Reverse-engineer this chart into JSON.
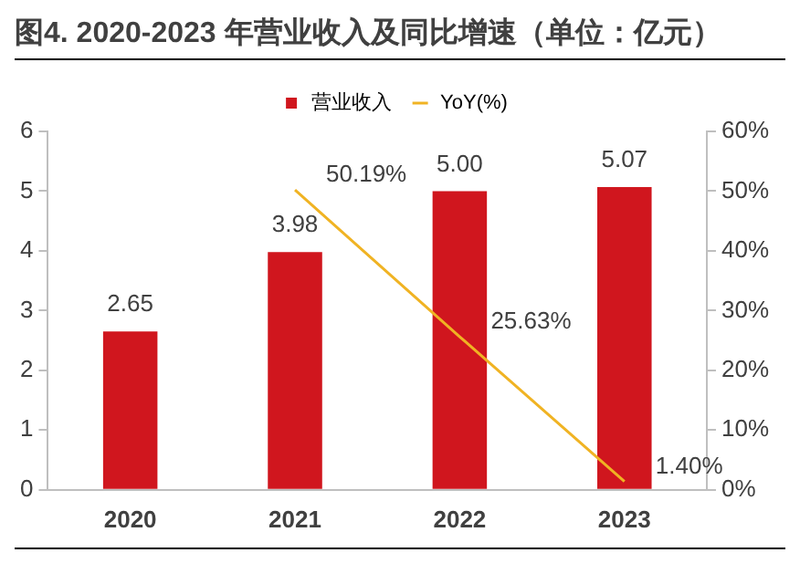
{
  "chart_data": {
    "type": "bar",
    "title": "图4. 2020-2023 年营业收入及同比增速（单位：亿元）",
    "categories": [
      "2020",
      "2021",
      "2022",
      "2023"
    ],
    "series": [
      {
        "name": "营业收入",
        "color": "#d0161e",
        "values": [
          2.65,
          3.98,
          5.0,
          5.07
        ],
        "value_labels": [
          "2.65",
          "3.98",
          "5.00",
          "5.07"
        ]
      },
      {
        "name": "YoY(%)",
        "type": "line",
        "axis": "y2",
        "color": "#f0b323",
        "values": [
          null,
          50.19,
          25.63,
          1.4
        ],
        "value_labels": [
          null,
          "50.19%",
          "25.63%",
          "1.40%"
        ]
      }
    ],
    "ylim": [
      0,
      6
    ],
    "yticks": [
      0,
      1,
      2,
      3,
      4,
      5,
      6
    ],
    "y2lim": [
      0,
      60
    ],
    "y2ticks": [
      {
        "value": 0,
        "label": "0%"
      },
      {
        "value": 10,
        "label": "10%"
      },
      {
        "value": 20,
        "label": "20%"
      },
      {
        "value": 30,
        "label": "30%"
      },
      {
        "value": 40,
        "label": "40%"
      },
      {
        "value": 50,
        "label": "50%"
      },
      {
        "value": 60,
        "label": "60%"
      }
    ],
    "grid": false,
    "legend": "top",
    "marker": "none"
  }
}
